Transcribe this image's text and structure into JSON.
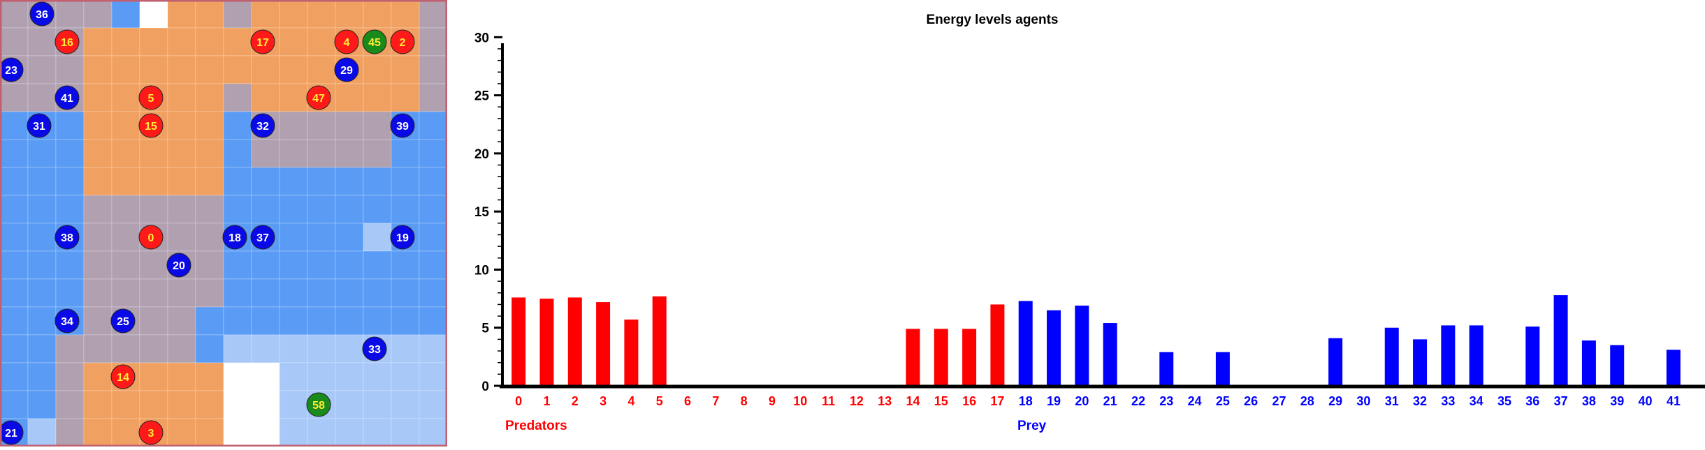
{
  "grid": {
    "cols": 16,
    "rows": 16,
    "colors": {
      "orange": "#f0a060",
      "orange_light": "#f5c090",
      "grey": "#b0a0b0",
      "blue": "#5a9cf5",
      "blue_light": "#a8c8f8",
      "white": "#ffffff",
      "border": "#c06070",
      "predator": "#ff1a1a",
      "prey": "#0a0ae6",
      "food": "#1a8a1a",
      "label_yellow": "#ffee33"
    },
    "cells": [
      "GGGGBWOOGOOOOOOG",
      "GGGOOOOOOOOOOOOG",
      "GGGOOOOOOOOOOOOG",
      "GGGOOOOOGOOOOOOG",
      "BBBOOOOOBGGGGGBB",
      "BBBOOOOOBGGGGGBB",
      "BBBOOOOOBBBBBBBB",
      "BBBGGGGGBBBBBBBB",
      "BBBGGGGGBBBBBLBB",
      "BBBGGGGGBBBBBBBB",
      "BBBGGGGGBBBBBBBB",
      "BBBGGGGBBBBBBBBB",
      "BBGGGGGBLLLLLLLL",
      "BBGOOOOOWWLLLLLL",
      "BBGOOOOOWWLLLLLL",
      "BLGOOOOOWWLLLLLL"
    ],
    "agents": [
      {
        "label": "36",
        "kind": "prey",
        "col": 1.5,
        "row": 0.5
      },
      {
        "label": "16",
        "kind": "predator",
        "col": 2.4,
        "row": 1.5
      },
      {
        "label": "17",
        "kind": "predator",
        "col": 9.4,
        "row": 1.5
      },
      {
        "label": "4",
        "kind": "predator",
        "col": 12.4,
        "row": 1.5
      },
      {
        "label": "45",
        "kind": "food",
        "col": 13.4,
        "row": 1.5
      },
      {
        "label": "2",
        "kind": "predator",
        "col": 14.4,
        "row": 1.5
      },
      {
        "label": "23",
        "kind": "prey",
        "col": 0.4,
        "row": 2.5
      },
      {
        "label": "29",
        "kind": "prey",
        "col": 12.4,
        "row": 2.5
      },
      {
        "label": "41",
        "kind": "prey",
        "col": 2.4,
        "row": 3.5
      },
      {
        "label": "5",
        "kind": "predator",
        "col": 5.4,
        "row": 3.5
      },
      {
        "label": "47",
        "kind": "predator",
        "col": 11.4,
        "row": 3.5
      },
      {
        "label": "31",
        "kind": "prey",
        "col": 1.4,
        "row": 4.5
      },
      {
        "label": "15",
        "kind": "predator",
        "col": 5.4,
        "row": 4.5
      },
      {
        "label": "32",
        "kind": "prey",
        "col": 9.4,
        "row": 4.5
      },
      {
        "label": "39",
        "kind": "prey",
        "col": 14.4,
        "row": 4.5
      },
      {
        "label": "38",
        "kind": "prey",
        "col": 2.4,
        "row": 8.5
      },
      {
        "label": "0",
        "kind": "predator",
        "col": 5.4,
        "row": 8.5
      },
      {
        "label": "18",
        "kind": "prey",
        "col": 8.4,
        "row": 8.5
      },
      {
        "label": "37",
        "kind": "prey",
        "col": 9.4,
        "row": 8.5
      },
      {
        "label": "19",
        "kind": "prey",
        "col": 14.4,
        "row": 8.5
      },
      {
        "label": "20",
        "kind": "prey",
        "col": 6.4,
        "row": 9.5
      },
      {
        "label": "34",
        "kind": "prey",
        "col": 2.4,
        "row": 11.5
      },
      {
        "label": "25",
        "kind": "prey",
        "col": 4.4,
        "row": 11.5
      },
      {
        "label": "33",
        "kind": "prey",
        "col": 13.4,
        "row": 12.5
      },
      {
        "label": "14",
        "kind": "predator",
        "col": 4.4,
        "row": 13.5
      },
      {
        "label": "58",
        "kind": "food",
        "col": 11.4,
        "row": 14.5
      },
      {
        "label": "21",
        "kind": "prey",
        "col": 0.4,
        "row": 15.5
      },
      {
        "label": "3",
        "kind": "predator",
        "col": 5.4,
        "row": 15.5
      }
    ]
  },
  "chart_data": {
    "type": "bar",
    "title": "Energy levels agents",
    "categories": [
      "0",
      "1",
      "2",
      "3",
      "4",
      "5",
      "6",
      "7",
      "8",
      "9",
      "10",
      "11",
      "12",
      "13",
      "14",
      "15",
      "16",
      "17",
      "18",
      "19",
      "20",
      "21",
      "22",
      "23",
      "24",
      "25",
      "26",
      "27",
      "28",
      "29",
      "30",
      "31",
      "32",
      "33",
      "34",
      "35",
      "36",
      "37",
      "38",
      "39",
      "40",
      "41"
    ],
    "values": [
      7.6,
      7.5,
      7.6,
      7.2,
      5.7,
      7.7,
      0,
      0,
      0,
      0,
      0,
      0,
      0,
      0,
      4.9,
      4.9,
      4.9,
      7.0,
      7.3,
      6.5,
      6.9,
      5.4,
      0,
      2.9,
      0,
      2.9,
      0,
      0,
      0,
      4.1,
      0,
      5.0,
      4.0,
      5.2,
      5.2,
      0,
      5.1,
      7.8,
      3.9,
      3.5,
      0,
      3.1
    ],
    "ylim": [
      0,
      30.5
    ],
    "yticks": [
      "0",
      "5",
      "10",
      "15",
      "20",
      "25",
      "30"
    ],
    "legend": {
      "predators": "Predators",
      "prey": "Prey"
    },
    "colors": {
      "predators": "#ff0000",
      "prey": "#0000ff",
      "axis": "#000000"
    },
    "predator_range": [
      0,
      17
    ],
    "prey_range": [
      18,
      41
    ]
  }
}
